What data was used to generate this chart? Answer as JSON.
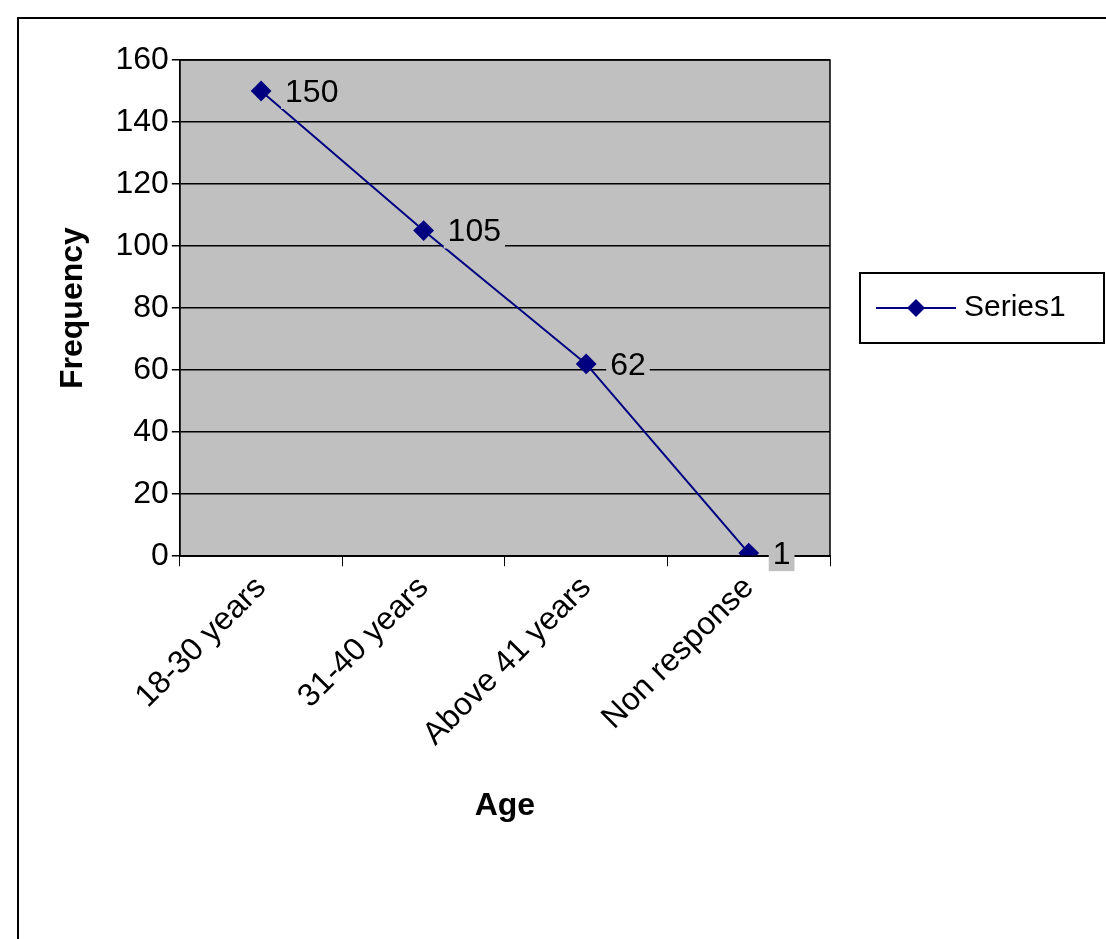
{
  "chart_data": {
    "type": "line",
    "xlabel": "Age",
    "ylabel": "Frequency",
    "categories": [
      "18-30 years",
      "31-40 years",
      "Above 41 years",
      "Non response"
    ],
    "series": [
      {
        "name": "Series1",
        "color": "#000080",
        "values": [
          150,
          105,
          62,
          1
        ]
      }
    ],
    "ylim": [
      0,
      160
    ],
    "yticks": [
      0,
      20,
      40,
      60,
      80,
      100,
      120,
      140,
      160
    ],
    "grid": "y",
    "legend": "right",
    "marker": "diamond",
    "line_style": "solid",
    "data_labels": true
  }
}
